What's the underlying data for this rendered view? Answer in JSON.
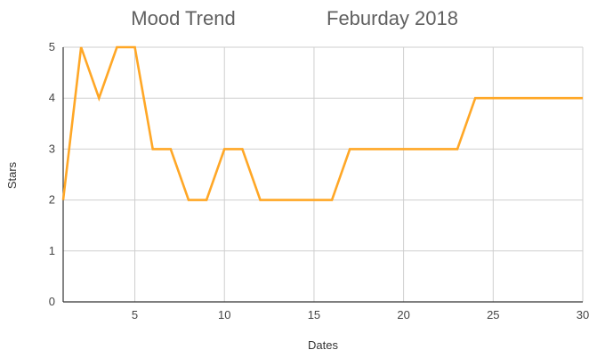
{
  "chart_data": {
    "type": "line",
    "title": "Mood Trend",
    "subtitle": "Feburday 2018",
    "xlabel": "Dates",
    "ylabel": "Stars",
    "xlim": [
      1,
      30
    ],
    "ylim": [
      0,
      5
    ],
    "x_ticks": [
      5,
      10,
      15,
      20,
      25,
      30
    ],
    "y_ticks": [
      0,
      1,
      2,
      3,
      4,
      5
    ],
    "grid": true,
    "series_color": "#FFA726",
    "x": [
      1,
      2,
      3,
      4,
      5,
      6,
      7,
      8,
      9,
      10,
      11,
      12,
      13,
      14,
      15,
      16,
      17,
      18,
      19,
      20,
      21,
      22,
      23,
      24,
      25,
      26,
      27,
      28,
      29,
      30
    ],
    "series": [
      {
        "values": [
          2,
          5,
          4,
          5,
          5,
          3,
          3,
          2,
          2,
          3,
          3,
          2,
          2,
          2,
          2,
          2,
          3,
          3,
          3,
          3,
          3,
          3,
          3,
          4,
          4,
          4,
          4,
          4,
          4,
          4
        ]
      }
    ]
  }
}
